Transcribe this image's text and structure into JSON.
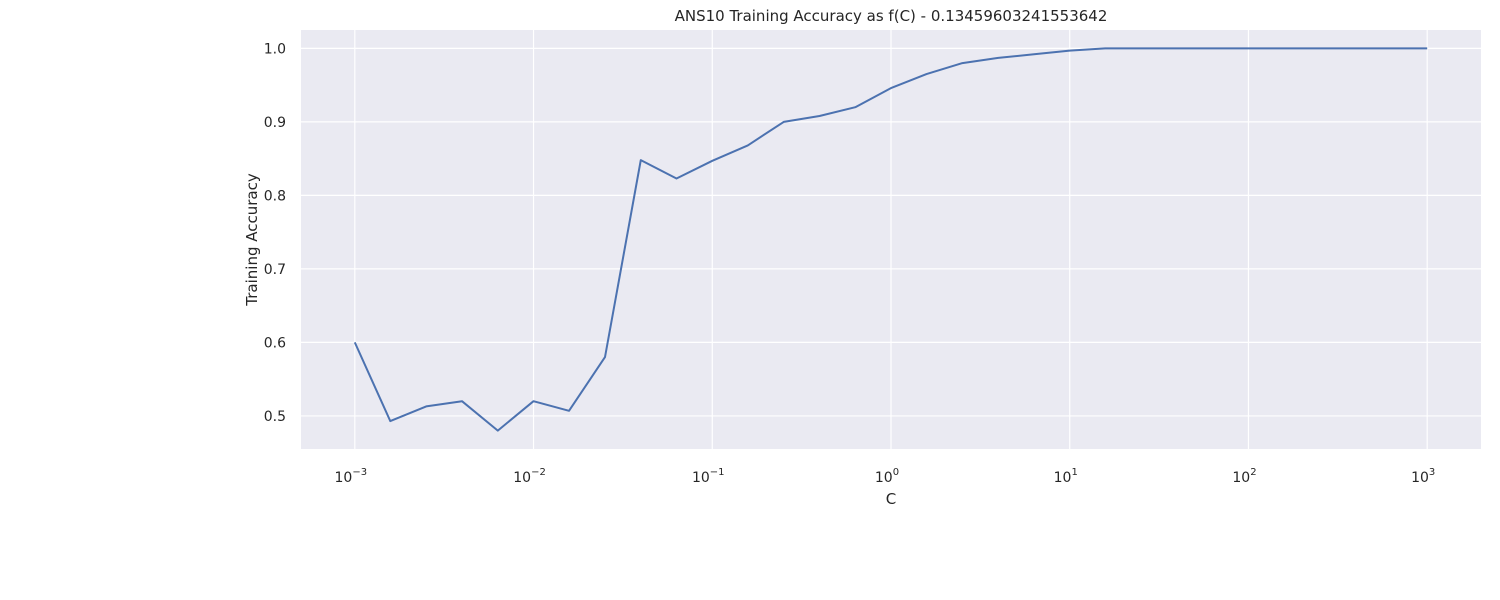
{
  "chart_data": {
    "type": "line",
    "title": "ANS10 Training Accuracy as f(C) - 0.13459603241553642",
    "xlabel": "C",
    "ylabel": "Training Accuracy",
    "xscale": "log",
    "xlim": [
      0.0005,
      2000
    ],
    "ylim": [
      0.455,
      1.025
    ],
    "grid": true,
    "background": "#EAEAF2",
    "grid_color": "#ffffff",
    "line_color": "#4C72B0",
    "x_ticks": [
      {
        "value": 0.001,
        "base": "10",
        "exp": "−3"
      },
      {
        "value": 0.01,
        "base": "10",
        "exp": "−2"
      },
      {
        "value": 0.1,
        "base": "10",
        "exp": "−1"
      },
      {
        "value": 1,
        "base": "10",
        "exp": "0"
      },
      {
        "value": 10,
        "base": "10",
        "exp": "1"
      },
      {
        "value": 100,
        "base": "10",
        "exp": "2"
      },
      {
        "value": 1000,
        "base": "10",
        "exp": "3"
      }
    ],
    "y_ticks": [
      {
        "value": 0.5,
        "label": "0.5"
      },
      {
        "value": 0.6,
        "label": "0.6"
      },
      {
        "value": 0.7,
        "label": "0.7"
      },
      {
        "value": 0.8,
        "label": "0.8"
      },
      {
        "value": 0.9,
        "label": "0.9"
      },
      {
        "value": 1.0,
        "label": "1.0"
      }
    ],
    "series": [
      {
        "x": [
          0.001,
          0.00158,
          0.00251,
          0.00398,
          0.00631,
          0.01,
          0.0158,
          0.0251,
          0.0398,
          0.0631,
          0.1,
          0.158,
          0.251,
          0.398,
          0.631,
          1.0,
          1.58,
          2.51,
          3.98,
          6.31,
          10,
          15.8,
          25.1,
          39.8,
          63.1,
          100,
          158,
          251,
          398,
          631,
          1000
        ],
        "values": [
          0.6,
          0.493,
          0.513,
          0.52,
          0.48,
          0.52,
          0.507,
          0.58,
          0.848,
          0.823,
          0.847,
          0.868,
          0.9,
          0.908,
          0.92,
          0.946,
          0.965,
          0.98,
          0.987,
          0.992,
          0.997,
          1.0,
          1.0,
          1.0,
          1.0,
          1.0,
          1.0,
          1.0,
          1.0,
          1.0,
          1.0
        ]
      }
    ]
  }
}
